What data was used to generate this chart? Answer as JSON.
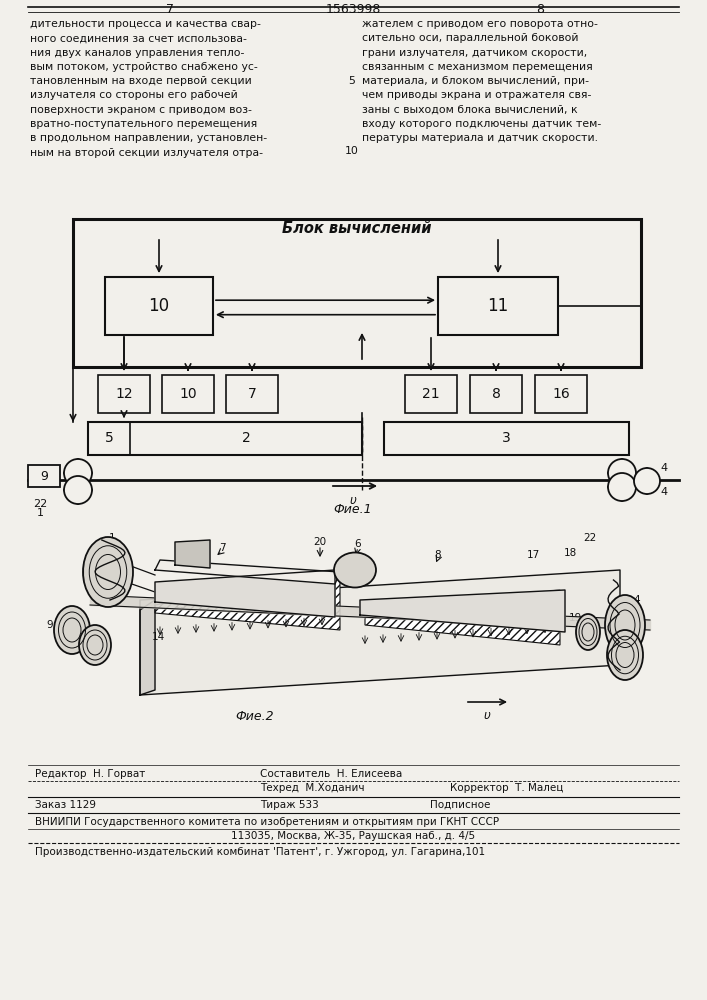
{
  "page_number_left": "7",
  "page_number_center": "1563998",
  "page_number_right": "8",
  "text_left": "дительности процесса и качества свар-\nного соединения за счет использова-\nния двух каналов управления тепло-\nвым потоком, устройство снабжено ус-\nтановленным на входе первой секции\nизлучателя со стороны его рабочей\nповерхности экраном с приводом воз-\nвратно-поступательного перемещения\nв продольном направлении, установлен-\nным на второй секции излучателя отра-",
  "text_right": "жателем с приводом его поворота отно-\nсительно оси, параллельной боковой\nграни излучателя, датчиком скорости,\nсвязанным с механизмом перемещения\nматериала, и блоком вычислений, при-\nчем приводы экрана и отражателя свя-\nзаны с выходом блока вычислений, к\nвходу которого подключены датчик тем-\nпературы материала и датчик скорости.",
  "line_number_5": "5",
  "line_number_10": "10",
  "fig1_label": "Фие.1",
  "fig2_label": "Фие.2",
  "blok_label": "Блок вычислений",
  "editor_label": "Редактор",
  "editor_name": "Н. Горват",
  "compiler_label": "Составитель",
  "compiler_name": "Н. Елисеева",
  "techred_label": "Техред",
  "techred_name": "М.Ходанич",
  "corrector_label": "Корректор",
  "corrector_name": "Т. Малец",
  "zakaz": "Заказ 1129",
  "tirazh": "Тираж 533",
  "podpisnoe": "Подписное",
  "vniipи": "ВНИИПИ Государственного комитета по изобретениям и открытиям при ГКНТ СССР",
  "address": "113035, Москва, Ж-35, Раушская наб., д. 4/5",
  "proizv": "Производственно-издательский комбинат 'Патент', г. Ужгород, ул. Гагарина,101",
  "bg_color": "#f2f0eb",
  "line_color": "#111111"
}
